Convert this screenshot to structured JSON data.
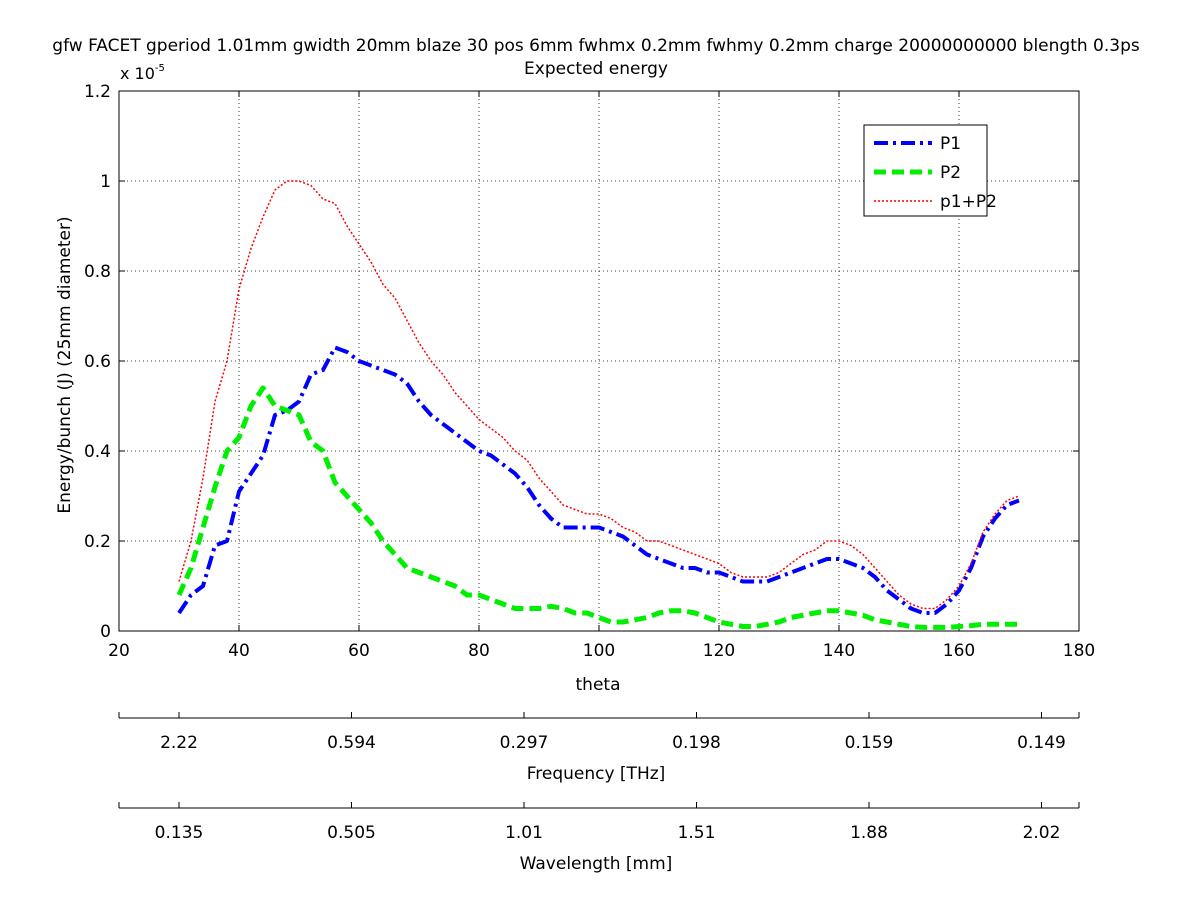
{
  "chart_data": {
    "type": "line",
    "title_line1": "gfw FACET gperiod 1.01mm gwidth 20mm blaze 30 pos 6mm fwhmx 0.2mm fwhmy 0.2mm charge 20000000000 blength 0.3ps",
    "title_line2": "Expected energy",
    "xlabel": "theta",
    "ylabel": "Energy/bunch (J) (25mm diameter)",
    "y_multiplier_base": "x 10",
    "y_multiplier_exp": "-5",
    "xlim": [
      20,
      180
    ],
    "ylim": [
      0,
      1.2
    ],
    "x_ticks": [
      20,
      40,
      60,
      80,
      100,
      120,
      140,
      160,
      180
    ],
    "x_tick_labels": [
      "20",
      "40",
      "60",
      "80",
      "100",
      "120",
      "140",
      "160",
      "180"
    ],
    "y_ticks": [
      0,
      0.2,
      0.4,
      0.6,
      0.8,
      1,
      1.2
    ],
    "y_tick_labels": [
      "0",
      "0.2",
      "0.4",
      "0.6",
      "0.8",
      "1",
      "1.2"
    ],
    "grid": true,
    "legend_position": "top-right",
    "series": [
      {
        "name": "P1",
        "color": "#0000ff",
        "style": "dashdot",
        "points": [
          [
            30,
            0.04
          ],
          [
            32,
            0.08
          ],
          [
            34,
            0.1
          ],
          [
            36,
            0.19
          ],
          [
            38,
            0.2
          ],
          [
            40,
            0.31
          ],
          [
            42,
            0.35
          ],
          [
            44,
            0.39
          ],
          [
            46,
            0.48
          ],
          [
            48,
            0.49
          ],
          [
            50,
            0.51
          ],
          [
            52,
            0.57
          ],
          [
            54,
            0.58
          ],
          [
            56,
            0.63
          ],
          [
            58,
            0.62
          ],
          [
            60,
            0.6
          ],
          [
            62,
            0.59
          ],
          [
            64,
            0.58
          ],
          [
            66,
            0.57
          ],
          [
            68,
            0.55
          ],
          [
            70,
            0.51
          ],
          [
            72,
            0.48
          ],
          [
            74,
            0.46
          ],
          [
            76,
            0.44
          ],
          [
            78,
            0.42
          ],
          [
            80,
            0.4
          ],
          [
            82,
            0.39
          ],
          [
            84,
            0.37
          ],
          [
            86,
            0.35
          ],
          [
            88,
            0.32
          ],
          [
            90,
            0.28
          ],
          [
            92,
            0.25
          ],
          [
            94,
            0.23
          ],
          [
            96,
            0.23
          ],
          [
            98,
            0.23
          ],
          [
            100,
            0.23
          ],
          [
            102,
            0.22
          ],
          [
            104,
            0.21
          ],
          [
            106,
            0.19
          ],
          [
            108,
            0.17
          ],
          [
            110,
            0.16
          ],
          [
            112,
            0.15
          ],
          [
            114,
            0.14
          ],
          [
            116,
            0.14
          ],
          [
            118,
            0.13
          ],
          [
            120,
            0.13
          ],
          [
            122,
            0.12
          ],
          [
            124,
            0.11
          ],
          [
            126,
            0.11
          ],
          [
            128,
            0.11
          ],
          [
            130,
            0.12
          ],
          [
            132,
            0.13
          ],
          [
            134,
            0.14
          ],
          [
            136,
            0.15
          ],
          [
            138,
            0.16
          ],
          [
            140,
            0.16
          ],
          [
            142,
            0.15
          ],
          [
            144,
            0.14
          ],
          [
            146,
            0.12
          ],
          [
            148,
            0.09
          ],
          [
            150,
            0.07
          ],
          [
            152,
            0.05
          ],
          [
            154,
            0.04
          ],
          [
            156,
            0.04
          ],
          [
            158,
            0.06
          ],
          [
            160,
            0.09
          ],
          [
            162,
            0.14
          ],
          [
            164,
            0.21
          ],
          [
            166,
            0.25
          ],
          [
            168,
            0.28
          ],
          [
            170,
            0.29
          ]
        ]
      },
      {
        "name": "P2",
        "color": "#00ee00",
        "style": "dashed",
        "points": [
          [
            30,
            0.08
          ],
          [
            32,
            0.14
          ],
          [
            34,
            0.23
          ],
          [
            36,
            0.32
          ],
          [
            38,
            0.4
          ],
          [
            40,
            0.43
          ],
          [
            42,
            0.5
          ],
          [
            44,
            0.54
          ],
          [
            46,
            0.5
          ],
          [
            48,
            0.49
          ],
          [
            50,
            0.48
          ],
          [
            52,
            0.42
          ],
          [
            54,
            0.4
          ],
          [
            56,
            0.33
          ],
          [
            58,
            0.3
          ],
          [
            60,
            0.27
          ],
          [
            62,
            0.24
          ],
          [
            64,
            0.2
          ],
          [
            66,
            0.17
          ],
          [
            68,
            0.14
          ],
          [
            70,
            0.13
          ],
          [
            72,
            0.12
          ],
          [
            74,
            0.11
          ],
          [
            76,
            0.1
          ],
          [
            78,
            0.08
          ],
          [
            80,
            0.08
          ],
          [
            82,
            0.07
          ],
          [
            84,
            0.06
          ],
          [
            86,
            0.05
          ],
          [
            88,
            0.05
          ],
          [
            90,
            0.05
          ],
          [
            92,
            0.055
          ],
          [
            94,
            0.05
          ],
          [
            96,
            0.04
          ],
          [
            98,
            0.04
          ],
          [
            100,
            0.03
          ],
          [
            102,
            0.02
          ],
          [
            104,
            0.02
          ],
          [
            106,
            0.025
          ],
          [
            108,
            0.03
          ],
          [
            110,
            0.04
          ],
          [
            112,
            0.045
          ],
          [
            114,
            0.045
          ],
          [
            116,
            0.04
          ],
          [
            118,
            0.03
          ],
          [
            120,
            0.02
          ],
          [
            122,
            0.015
          ],
          [
            124,
            0.01
          ],
          [
            126,
            0.01
          ],
          [
            128,
            0.015
          ],
          [
            130,
            0.02
          ],
          [
            132,
            0.03
          ],
          [
            134,
            0.035
          ],
          [
            136,
            0.04
          ],
          [
            138,
            0.045
          ],
          [
            140,
            0.045
          ],
          [
            142,
            0.04
          ],
          [
            144,
            0.035
          ],
          [
            146,
            0.025
          ],
          [
            148,
            0.02
          ],
          [
            150,
            0.015
          ],
          [
            152,
            0.01
          ],
          [
            154,
            0.008
          ],
          [
            156,
            0.008
          ],
          [
            158,
            0.008
          ],
          [
            160,
            0.01
          ],
          [
            162,
            0.012
          ],
          [
            164,
            0.015
          ],
          [
            166,
            0.015
          ],
          [
            168,
            0.015
          ],
          [
            170,
            0.015
          ]
        ]
      },
      {
        "name": "p1+P2",
        "color": "#ff0000",
        "style": "dotted",
        "points": [
          [
            30,
            0.11
          ],
          [
            32,
            0.2
          ],
          [
            34,
            0.34
          ],
          [
            36,
            0.51
          ],
          [
            38,
            0.6
          ],
          [
            40,
            0.76
          ],
          [
            42,
            0.85
          ],
          [
            44,
            0.92
          ],
          [
            46,
            0.98
          ],
          [
            48,
            1.0
          ],
          [
            50,
            1.0
          ],
          [
            52,
            0.99
          ],
          [
            54,
            0.96
          ],
          [
            56,
            0.95
          ],
          [
            58,
            0.9
          ],
          [
            60,
            0.86
          ],
          [
            62,
            0.82
          ],
          [
            64,
            0.77
          ],
          [
            66,
            0.74
          ],
          [
            68,
            0.69
          ],
          [
            70,
            0.64
          ],
          [
            72,
            0.6
          ],
          [
            74,
            0.57
          ],
          [
            76,
            0.53
          ],
          [
            78,
            0.5
          ],
          [
            80,
            0.47
          ],
          [
            82,
            0.45
          ],
          [
            84,
            0.43
          ],
          [
            86,
            0.4
          ],
          [
            88,
            0.38
          ],
          [
            90,
            0.34
          ],
          [
            92,
            0.31
          ],
          [
            94,
            0.28
          ],
          [
            96,
            0.27
          ],
          [
            98,
            0.26
          ],
          [
            100,
            0.26
          ],
          [
            102,
            0.25
          ],
          [
            104,
            0.23
          ],
          [
            106,
            0.22
          ],
          [
            108,
            0.2
          ],
          [
            110,
            0.2
          ],
          [
            112,
            0.19
          ],
          [
            114,
            0.18
          ],
          [
            116,
            0.17
          ],
          [
            118,
            0.16
          ],
          [
            120,
            0.15
          ],
          [
            122,
            0.13
          ],
          [
            124,
            0.12
          ],
          [
            126,
            0.12
          ],
          [
            128,
            0.12
          ],
          [
            130,
            0.13
          ],
          [
            132,
            0.15
          ],
          [
            134,
            0.17
          ],
          [
            136,
            0.18
          ],
          [
            138,
            0.2
          ],
          [
            140,
            0.2
          ],
          [
            142,
            0.19
          ],
          [
            144,
            0.17
          ],
          [
            146,
            0.14
          ],
          [
            148,
            0.11
          ],
          [
            150,
            0.08
          ],
          [
            152,
            0.06
          ],
          [
            154,
            0.05
          ],
          [
            156,
            0.05
          ],
          [
            158,
            0.07
          ],
          [
            160,
            0.1
          ],
          [
            162,
            0.15
          ],
          [
            164,
            0.22
          ],
          [
            166,
            0.26
          ],
          [
            168,
            0.29
          ],
          [
            170,
            0.3
          ]
        ]
      }
    ],
    "secondary_axes": [
      {
        "label": "Frequency [THz]",
        "tick_positions": [
          30,
          58.75,
          87.5,
          116.25,
          145,
          173.75
        ],
        "tick_labels": [
          "2.22",
          "0.594",
          "0.297",
          "0.198",
          "0.159",
          "0.149"
        ]
      },
      {
        "label": "Wavelength [mm]",
        "tick_positions": [
          30,
          58.75,
          87.5,
          116.25,
          145,
          173.75
        ],
        "tick_labels": [
          "0.135",
          "0.505",
          "1.01",
          "1.51",
          "1.88",
          "2.02"
        ]
      }
    ]
  }
}
